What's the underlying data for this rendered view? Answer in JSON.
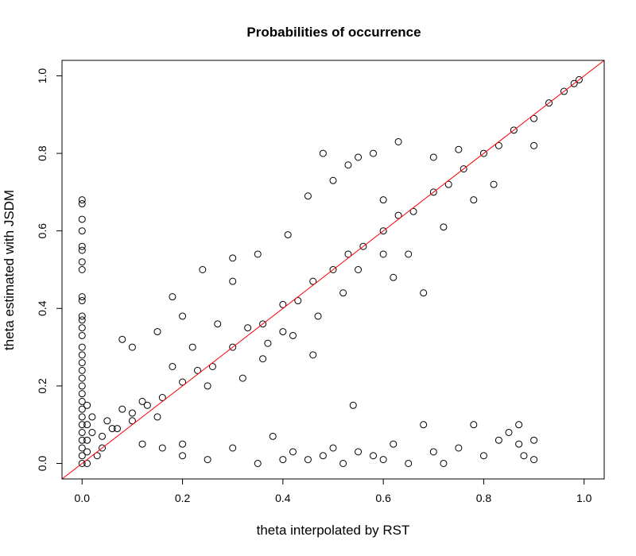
{
  "chart_data": {
    "type": "scatter",
    "title": "Probabilities of occurrence",
    "xlabel": "theta interpolated by RST",
    "ylabel": "theta estimated with JSDM",
    "xlim": [
      -0.04,
      1.04
    ],
    "ylim": [
      -0.04,
      1.04
    ],
    "x_ticks": [
      0.0,
      0.2,
      0.4,
      0.6,
      0.8,
      1.0
    ],
    "y_ticks": [
      0.0,
      0.2,
      0.4,
      0.6,
      0.8,
      1.0
    ],
    "x_tick_labels": [
      "0.0",
      "0.2",
      "0.4",
      "0.6",
      "0.8",
      "1.0"
    ],
    "y_tick_labels": [
      "0.0",
      "0.2",
      "0.4",
      "0.6",
      "0.8",
      "1.0"
    ],
    "grid": false,
    "legend": "none",
    "marker": "open-circle",
    "marker_color": "#000000",
    "reference_line": {
      "slope": 1,
      "intercept": 0,
      "color": "#ff0000"
    },
    "points": [
      [
        0.0,
        0.68
      ],
      [
        0.0,
        0.67
      ],
      [
        0.0,
        0.63
      ],
      [
        0.0,
        0.6
      ],
      [
        0.0,
        0.56
      ],
      [
        0.0,
        0.55
      ],
      [
        0.0,
        0.52
      ],
      [
        0.0,
        0.5
      ],
      [
        0.0,
        0.43
      ],
      [
        0.0,
        0.42
      ],
      [
        0.0,
        0.38
      ],
      [
        0.0,
        0.37
      ],
      [
        0.0,
        0.35
      ],
      [
        0.0,
        0.33
      ],
      [
        0.0,
        0.3
      ],
      [
        0.0,
        0.28
      ],
      [
        0.0,
        0.26
      ],
      [
        0.0,
        0.24
      ],
      [
        0.0,
        0.22
      ],
      [
        0.0,
        0.2
      ],
      [
        0.0,
        0.18
      ],
      [
        0.0,
        0.16
      ],
      [
        0.0,
        0.14
      ],
      [
        0.0,
        0.12
      ],
      [
        0.0,
        0.1
      ],
      [
        0.0,
        0.08
      ],
      [
        0.0,
        0.06
      ],
      [
        0.0,
        0.04
      ],
      [
        0.0,
        0.02
      ],
      [
        0.0,
        0.0
      ],
      [
        0.01,
        0.15
      ],
      [
        0.01,
        0.1
      ],
      [
        0.01,
        0.06
      ],
      [
        0.01,
        0.03
      ],
      [
        0.01,
        0.0
      ],
      [
        0.02,
        0.12
      ],
      [
        0.02,
        0.08
      ],
      [
        0.03,
        0.02
      ],
      [
        0.04,
        0.07
      ],
      [
        0.05,
        0.11
      ],
      [
        0.06,
        0.09
      ],
      [
        0.08,
        0.14
      ],
      [
        0.1,
        0.13
      ],
      [
        0.12,
        0.16
      ],
      [
        0.15,
        0.12
      ],
      [
        0.04,
        0.04
      ],
      [
        0.07,
        0.09
      ],
      [
        0.1,
        0.11
      ],
      [
        0.13,
        0.15
      ],
      [
        0.16,
        0.17
      ],
      [
        0.2,
        0.21
      ],
      [
        0.23,
        0.24
      ],
      [
        0.26,
        0.25
      ],
      [
        0.3,
        0.3
      ],
      [
        0.33,
        0.35
      ],
      [
        0.36,
        0.36
      ],
      [
        0.4,
        0.41
      ],
      [
        0.43,
        0.42
      ],
      [
        0.46,
        0.47
      ],
      [
        0.5,
        0.5
      ],
      [
        0.53,
        0.54
      ],
      [
        0.56,
        0.56
      ],
      [
        0.6,
        0.6
      ],
      [
        0.63,
        0.64
      ],
      [
        0.66,
        0.65
      ],
      [
        0.7,
        0.7
      ],
      [
        0.73,
        0.72
      ],
      [
        0.76,
        0.76
      ],
      [
        0.8,
        0.8
      ],
      [
        0.83,
        0.82
      ],
      [
        0.86,
        0.86
      ],
      [
        0.9,
        0.89
      ],
      [
        0.93,
        0.93
      ],
      [
        0.96,
        0.96
      ],
      [
        0.98,
        0.98
      ],
      [
        0.99,
        0.99
      ],
      [
        0.08,
        0.32
      ],
      [
        0.1,
        0.3
      ],
      [
        0.15,
        0.34
      ],
      [
        0.18,
        0.43
      ],
      [
        0.2,
        0.38
      ],
      [
        0.24,
        0.5
      ],
      [
        0.25,
        0.2
      ],
      [
        0.3,
        0.47
      ],
      [
        0.3,
        0.53
      ],
      [
        0.35,
        0.54
      ],
      [
        0.36,
        0.27
      ],
      [
        0.41,
        0.59
      ],
      [
        0.45,
        0.69
      ],
      [
        0.48,
        0.8
      ],
      [
        0.5,
        0.73
      ],
      [
        0.53,
        0.77
      ],
      [
        0.55,
        0.79
      ],
      [
        0.58,
        0.8
      ],
      [
        0.6,
        0.68
      ],
      [
        0.63,
        0.83
      ],
      [
        0.7,
        0.79
      ],
      [
        0.75,
        0.81
      ],
      [
        0.18,
        0.25
      ],
      [
        0.22,
        0.3
      ],
      [
        0.27,
        0.36
      ],
      [
        0.32,
        0.22
      ],
      [
        0.37,
        0.31
      ],
      [
        0.42,
        0.33
      ],
      [
        0.47,
        0.38
      ],
      [
        0.52,
        0.44
      ],
      [
        0.55,
        0.5
      ],
      [
        0.6,
        0.54
      ],
      [
        0.62,
        0.48
      ],
      [
        0.65,
        0.54
      ],
      [
        0.68,
        0.44
      ],
      [
        0.72,
        0.61
      ],
      [
        0.78,
        0.68
      ],
      [
        0.82,
        0.72
      ],
      [
        0.9,
        0.82
      ],
      [
        0.54,
        0.15
      ],
      [
        0.46,
        0.28
      ],
      [
        0.4,
        0.34
      ],
      [
        0.12,
        0.05
      ],
      [
        0.16,
        0.04
      ],
      [
        0.2,
        0.05
      ],
      [
        0.2,
        0.02
      ],
      [
        0.25,
        0.01
      ],
      [
        0.3,
        0.04
      ],
      [
        0.35,
        0.0
      ],
      [
        0.38,
        0.07
      ],
      [
        0.4,
        0.01
      ],
      [
        0.42,
        0.03
      ],
      [
        0.45,
        0.01
      ],
      [
        0.48,
        0.02
      ],
      [
        0.5,
        0.04
      ],
      [
        0.52,
        0.0
      ],
      [
        0.55,
        0.03
      ],
      [
        0.58,
        0.02
      ],
      [
        0.6,
        0.01
      ],
      [
        0.62,
        0.05
      ],
      [
        0.65,
        0.0
      ],
      [
        0.68,
        0.1
      ],
      [
        0.7,
        0.03
      ],
      [
        0.72,
        0.0
      ],
      [
        0.75,
        0.04
      ],
      [
        0.78,
        0.1
      ],
      [
        0.8,
        0.02
      ],
      [
        0.83,
        0.06
      ],
      [
        0.85,
        0.08
      ],
      [
        0.87,
        0.1
      ],
      [
        0.87,
        0.05
      ],
      [
        0.88,
        0.02
      ],
      [
        0.9,
        0.01
      ],
      [
        0.9,
        0.06
      ]
    ]
  }
}
